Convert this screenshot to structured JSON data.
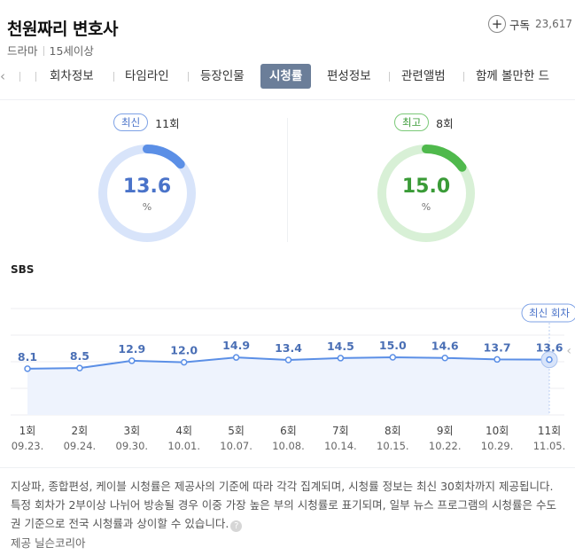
{
  "header": {
    "title": "천원짜리 변호사",
    "genre": "드라마",
    "rating": "15세이상",
    "subscribe_label": "구독",
    "subscriber_count": "23,617"
  },
  "tabs": {
    "items": [
      {
        "label": "회차정보",
        "active": false
      },
      {
        "label": "타임라인",
        "active": false
      },
      {
        "label": "등장인물",
        "active": false
      },
      {
        "label": "시청률",
        "active": true
      },
      {
        "label": "편성정보",
        "active": false
      },
      {
        "label": "관련앨범",
        "active": false
      },
      {
        "label": "함께 볼만한 드",
        "active": false
      }
    ]
  },
  "summary": {
    "latest": {
      "badge": "최신",
      "episode": "11회",
      "value": "13.6",
      "unit": "%",
      "fraction": 0.136
    },
    "best": {
      "badge": "최고",
      "episode": "8회",
      "value": "15.0",
      "unit": "%",
      "fraction": 0.15
    }
  },
  "colors": {
    "latest_accent": "#5b8fe6",
    "latest_track": "#d8e4fa",
    "best_accent": "#4fb94c",
    "best_track": "#d8f0d6",
    "line": "#5b8fe6",
    "label": "#4a6fb5"
  },
  "chart_data": {
    "type": "line",
    "network": "SBS",
    "episodes": [
      "1회",
      "2회",
      "3회",
      "4회",
      "5회",
      "6회",
      "7회",
      "8회",
      "9회",
      "10회",
      "11회"
    ],
    "dates": [
      "09.23.",
      "09.24.",
      "09.30.",
      "10.01.",
      "10.07.",
      "10.08.",
      "10.14.",
      "10.15.",
      "10.22.",
      "10.29.",
      "11.05."
    ],
    "values": [
      8.1,
      8.5,
      12.9,
      12.0,
      14.9,
      13.4,
      14.5,
      15.0,
      14.6,
      13.7,
      13.6
    ],
    "latest_tag": "최신 회차",
    "grid": true
  },
  "footer": {
    "note": "지상파, 종합편성, 케이블 시청률은 제공사의 기준에 따라 각각 집계되며, 시청률 정보는 최신 30회차까지 제공됩니다. 특정 회차가 2부이상 나뉘어 방송될 경우 이중 가장 높은 부의 시청률로 표기되며, 일부 뉴스 프로그램의 시청률은 수도권 기준으로 전국 시청률과 상이할 수 있습니다.",
    "provider": "제공 닐슨코리아"
  }
}
